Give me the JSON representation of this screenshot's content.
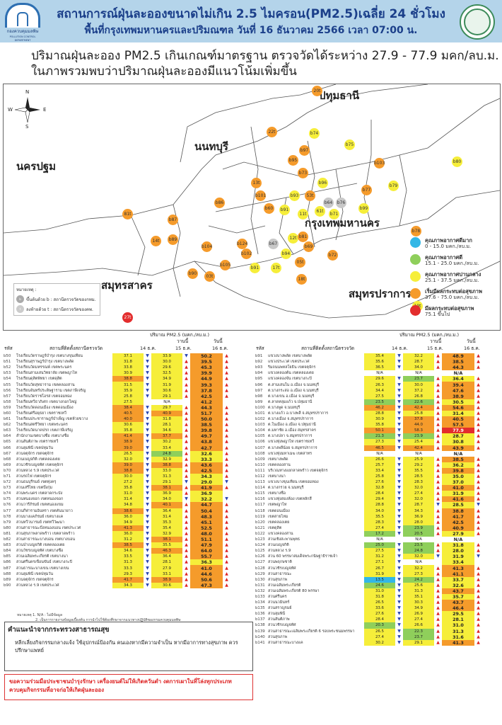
{
  "header": {
    "title": "สถานการณ์ฝุ่นละอองขนาดไม่เกิน 2.5 ไมครอน(PM2.5)เฉลี่ย 24 ชั่วโมง",
    "subtitle": "พื้นที่กรุงเทพมหานครและปริมณฑล วันที่ 16 ธันวาคม 2566 เวลา 07:00 น.",
    "logo_left_text": "กองควบคุมมลพิษ",
    "logo_left_sub": "POLLUTION CONTROL DEPARTMENT"
  },
  "summary": {
    "line1": "ปริมาณฝุ่นละออง PM2.5 เกินเกณฑ์มาตรฐาน ตรวจวัดได้ระหว่าง 27.9 - 77.9 มคก/ลบ.ม.",
    "line2": "ในภาพรวมพบว่าปริมาณฝุ่นละอองมีแนวโน้มเพิ่มขึ้น"
  },
  "map": {
    "compass": {
      "n": "N",
      "s": "S",
      "e": "E",
      "w": "W"
    },
    "regions": {
      "pathum": "ปทุมธานี",
      "nonthaburi": "นนทบุรี",
      "nakhonpathom": "นครปฐม",
      "bangkok": "กรุงเทพมหานคร",
      "samutsakhon": "สมุทรสาคร",
      "samutprakan": "สมุทรปราการ"
    },
    "stations": [
      {
        "label": "20t",
        "color": "orange"
      },
      {
        "label": "b74",
        "color": "yellow"
      },
      {
        "label": "b75",
        "color": "yellow"
      },
      {
        "label": "22t",
        "color": "orange"
      },
      {
        "label": "b97",
        "color": "orange"
      },
      {
        "label": "b95",
        "color": "orange"
      },
      {
        "label": "b103",
        "color": "orange"
      },
      {
        "label": "b80",
        "color": "yellow"
      },
      {
        "label": "b73",
        "color": "orange"
      },
      {
        "label": "b96",
        "color": "yellow"
      },
      {
        "label": "b77",
        "color": "orange"
      },
      {
        "label": "b79",
        "color": "yellow"
      },
      {
        "label": "13t",
        "color": "orange"
      },
      {
        "label": "b86",
        "color": "orange"
      },
      {
        "label": "b101",
        "color": "orange"
      },
      {
        "label": "b93",
        "color": "yellow"
      },
      {
        "label": "53t",
        "color": "orange"
      },
      {
        "label": "b64",
        "color": "grey"
      },
      {
        "label": "b76",
        "color": "grey"
      },
      {
        "label": "b99",
        "color": "yellow"
      },
      {
        "label": "81t",
        "color": "orange"
      },
      {
        "label": "b87",
        "color": "orange"
      },
      {
        "label": "b60",
        "color": "orange"
      },
      {
        "label": "b91",
        "color": "yellow"
      },
      {
        "label": "11t",
        "color": "yellow"
      },
      {
        "label": "61t",
        "color": "yellow"
      },
      {
        "label": "b71",
        "color": "yellow"
      },
      {
        "label": "14t",
        "color": "orange"
      },
      {
        "label": "b89",
        "color": "orange"
      },
      {
        "label": "b104",
        "color": "orange"
      },
      {
        "label": "b124",
        "color": "orange"
      },
      {
        "label": "b67",
        "color": "grey"
      },
      {
        "label": "12t",
        "color": "yellow"
      },
      {
        "label": "b81",
        "color": "orange"
      },
      {
        "label": "b78",
        "color": "orange"
      },
      {
        "label": "b102",
        "color": "orange"
      },
      {
        "label": "b94",
        "color": "yellow"
      },
      {
        "label": "b69",
        "color": "orange"
      },
      {
        "label": "b72",
        "color": "orange"
      },
      {
        "label": "b91",
        "color": "yellow"
      },
      {
        "label": "17t",
        "color": "yellow"
      },
      {
        "label": "05t",
        "color": "orange"
      },
      {
        "label": "b90",
        "color": "orange"
      },
      {
        "label": "03t",
        "color": "orange"
      },
      {
        "label": "b105",
        "color": "orange"
      },
      {
        "label": "18t",
        "color": "orange"
      },
      {
        "label": "19t",
        "color": "yellow"
      },
      {
        "label": "27t",
        "color": "red"
      }
    ],
    "legend": [
      {
        "title": "คุณภาพอากาศดีมาก",
        "range": "0 - 15.0 มคก./ลบ.ม.",
        "color": "#33b7e6"
      },
      {
        "title": "คุณภาพอากาศดี",
        "range": "15.1 - 25.0 มคก./ลบ.ม.",
        "color": "#8fcf5b"
      },
      {
        "title": "คุณภาพอากาศปานกลาง",
        "range": "25.1 - 37.5 มคก./ลบ.ม.",
        "color": "#f6ee3a"
      },
      {
        "title": "เริ่มมีผลกระทบต่อสุขภาพ",
        "range": "37.6 - 75.0 มคก./ลบ.ม.",
        "color": "#f59b2b"
      },
      {
        "title": "มีผลกระทบต่อสุขภาพ",
        "range": "75.1 ขึ้นไป",
        "color": "#e32d2d"
      }
    ],
    "note": {
      "title": "หมายเหตุ :",
      "row1": "ขึ้นต้นด้วย b : สถานีตรวจวัดของกทม.",
      "row2": "ลงท้ายด้วย t : สถานีตรวจวัดของคพ."
    }
  },
  "table_header": {
    "unit": "ปริมาณ PM2.5 (มคก./ลบ.ม.)",
    "code": "รหัส",
    "station_left": "สถานที่ติดตั้งสถานีตรวจวัด",
    "station_right": "สถานที่ติดตั้งสถานีตรวจวัด",
    "col1": "14 ธ.ค.",
    "col2_top": "วานนี้",
    "col2": "15 ธ.ค.",
    "col3_top": "วันนี้",
    "col3": "16 ธ.ค."
  },
  "table_left": [
    [
      "b50",
      "โรงเรียนวัดราษฎร์บำรุง เขตบางขุนเทียน",
      "37.1",
      "dn",
      "33.9",
      "dn",
      "50.2",
      "up"
    ],
    [
      "b51",
      "โรงเรียนสุราษฎร์บำรุง เขตบางพลัด",
      "31.8",
      "dn",
      "30.0",
      "up",
      "39.5",
      "up"
    ],
    [
      "b52",
      "โรงเรียนวัดมหรรณพ์ เขตพระนคร",
      "33.8",
      "dn",
      "29.6",
      "up",
      "45.3",
      "up"
    ],
    [
      "b53",
      "โรงเรียนสามเสนวิทยาลัย เขตพญาไท",
      "30.9",
      "dn",
      "32.5",
      "up",
      "39.9",
      "up"
    ],
    [
      "b54",
      "โรงเรียนดุสิตพิทยา เขตดุสิต",
      "38.8",
      "dn",
      "34.9",
      "up",
      "44.9",
      "up"
    ],
    [
      "b55",
      "โรงเรียนวัดสุทธาราม เขตคลองสาน",
      "31.5",
      "dn",
      "31.9",
      "up",
      "39.3",
      "up"
    ],
    [
      "b56",
      "โรงเรียนจันทร์ประดิษฐาราม เขตภาษีเจริญ",
      "35.9",
      "dn",
      "30.6",
      "up",
      "37.8",
      "up"
    ],
    [
      "b57",
      "โรงเรียนวัดราชโอรส เขตจอมทอง",
      "25.8",
      "dn",
      "29.1",
      "up",
      "42.5",
      "up"
    ],
    [
      "b58",
      "โรงเรียนทวีธาภิเศก เขตบางกอกใหญ่",
      "27.5",
      "",
      "N/A",
      "",
      "41.2",
      ""
    ],
    [
      "b59",
      "โรงเรียนวัดดอนเมือง เขตดอนเมือง",
      "38.4",
      "dn",
      "29.7",
      "up",
      "44.3",
      "up"
    ],
    [
      "b60",
      "โรงเรียนศรีอยุธยา เขตราชเทวี",
      "40.5",
      "dn",
      "40.9",
      "up",
      "51.7",
      "up"
    ],
    [
      "b61",
      "โรงเรียนประชาราษฎร์บำเพ็ญ เขตห้วยขวาง",
      "40.0",
      "dn",
      "31.8",
      "up",
      "50.0",
      "up"
    ],
    [
      "b62",
      "โรงเรียนสตรีวิทยา เขตพระนคร",
      "30.6",
      "dn",
      "28.1",
      "up",
      "38.5",
      "up"
    ],
    [
      "b63",
      "โรงเรียนวัดนาคปรก เขตภาษีเจริญ",
      "35.8",
      "dn",
      "34.6",
      "up",
      "39.8",
      "up"
    ],
    [
      "b64",
      "สำนักงานเขตบางซื่อ เขตบางซื่อ",
      "41.4",
      "dn",
      "37.7",
      "up",
      "49.7",
      "up"
    ],
    [
      "b65",
      "สวนสันติภาพ เขตราชเทวี",
      "38.9",
      "dn",
      "30.2",
      "up",
      "43.8",
      "up"
    ],
    [
      "b66",
      "สวนลุมพินี เขตปทุมวัน",
      "39.0",
      "dn",
      "33.4",
      "up",
      "42.7",
      "up"
    ],
    [
      "b67",
      "สวนจตุจักร เขตจตุจักร",
      "26.5",
      "dn",
      "24.8",
      "up",
      "32.6",
      "up"
    ],
    [
      "b68",
      "สวนเบญจกิติ เขตคลองเตย",
      "32.0",
      "dn",
      "32.9",
      "up",
      "33.3",
      "up"
    ],
    [
      "b69",
      "สวนวชิรเบญจทัศ เขตจตุจักร",
      "39.0",
      "dn",
      "38.8",
      "up",
      "43.6",
      "up"
    ],
    [
      "b70",
      "สวนหลวง ร.9 เขตประเวศ",
      "38.8",
      "dn",
      "33.0",
      "up",
      "42.5",
      "up"
    ],
    [
      "b71",
      "สวนรถไฟ เขตจตุจักร",
      "30.0",
      "dn",
      "31.3",
      "up",
      "34.3",
      "up"
    ],
    [
      "b72",
      "สวนธนบุรีรมย์ เขตทุ่งครุ",
      "27.2",
      "dn",
      "29.1",
      "dn",
      "29.0",
      "dn"
    ],
    [
      "b73",
      "สวนเสรีไทย เขตบึงกุ่ม",
      "35.8",
      "dn",
      "38.1",
      "up",
      "41.9",
      "up"
    ],
    [
      "b74",
      "สวนพระนคร เขตลาดกระบัง",
      "31.0",
      "dn",
      "36.9",
      "up",
      "36.9",
      ""
    ],
    [
      "b75",
      "สวนหนองจอก เขตหนองจอก",
      "31.4",
      "dn",
      "34.0",
      "dn",
      "32.2",
      "dn"
    ],
    [
      "b76",
      "สวนวารีภิรมย์ เขตหนองแขม",
      "34.8",
      "dn",
      "40.1",
      "up",
      "44.7",
      "up"
    ],
    [
      "b77",
      "สวนกีฬารามอินทรา เขตคันนายาว",
      "38.6",
      "dn",
      "36.4",
      "up",
      "50.4",
      "up"
    ],
    [
      "b78",
      "สวนบางแคภิรมย์ เขตบางแค",
      "36.0",
      "dn",
      "31.4",
      "up",
      "48.3",
      "up"
    ],
    [
      "b79",
      "สวนทวีวนารมย์ เขตทวีวัฒนา",
      "34.9",
      "dn",
      "35.3",
      "up",
      "45.1",
      "up"
    ],
    [
      "b80",
      "สวนสาธารณะบึงหนองบอน เขตประเวศ",
      "41.3",
      "dn",
      "35.4",
      "up",
      "52.5",
      "up"
    ],
    [
      "b81",
      "สวนสุขภาพลาดพร้าว เขตลาดพร้าว",
      "36.0",
      "dn",
      "32.9",
      "up",
      "48.0",
      "up"
    ],
    [
      "b82",
      "สวนสาธารณะบางบอน เขตบางบอน",
      "31.2",
      "dn",
      "38.1",
      "up",
      "51.1",
      "up"
    ],
    [
      "b83",
      "สวนป่าเบญจกิติ เขตคลองเตย",
      "38.5",
      "dn",
      "35.5",
      "up",
      "47.9",
      "up"
    ],
    [
      "b84",
      "สวนวัชรเบญจทัศ เขตบางซื่อ",
      "34.6",
      "dn",
      "46.3",
      "up",
      "64.0",
      "up"
    ],
    [
      "b85",
      "สวนเฉลิมพระเกียรติ เขตบางนา",
      "33.5",
      "dn",
      "36.4",
      "up",
      "55.7",
      "up"
    ],
    [
      "b86",
      "สวนศรีนครเขื่อนขันธ์ เขตบางกะปิ",
      "31.3",
      "dn",
      "28.1",
      "up",
      "36.3",
      "up"
    ],
    [
      "b87",
      "สวนธารณะบางเขน เขตบางเขน",
      "33.3",
      "dn",
      "27.9",
      "up",
      "41.0",
      "up"
    ],
    [
      "b88",
      "สวนลุมพินี เขตปทุมวัน",
      "29.3",
      "dn",
      "33.1",
      "up",
      "44.6",
      "up"
    ],
    [
      "b89",
      "สวนจตุจักร เขตจตุจักร",
      "41.7",
      "dn",
      "38.9",
      "up",
      "50.6",
      "up"
    ],
    [
      "b90",
      "สวนหลวง ร.9 เขตประเวศ",
      "34.3",
      "dn",
      "30.6",
      "up",
      "47.3",
      "up"
    ]
  ],
  "table_right": [
    [
      "b91",
      "แขวงบางพลัด เขตบางพลัด",
      "35.4",
      "dn",
      "32.2",
      "up",
      "48.9",
      "up"
    ],
    [
      "b92",
      "แขวงประเวศ เขตประเวศ",
      "35.6",
      "dn",
      "28.7",
      "up",
      "38.5",
      "up"
    ],
    [
      "b93",
      "ริมถนนพหลโยธิน เขตจตุจักร",
      "36.5",
      "dn",
      "34.0",
      "up",
      "44.3",
      "up"
    ],
    [
      "b94",
      "แขวงคลองต้น เขตคลองเตย",
      "N/A",
      "",
      "N/A",
      "",
      "N/A",
      ""
    ],
    [
      "b95",
      "แขวงคลองจั่น เขตบางกะปิ",
      "29.6",
      "dn",
      "23.7",
      "up",
      "36.4",
      "up"
    ],
    [
      "b96",
      "ต.สามเสนใน อ.เมือง จ.นนทบุรี",
      "26.3",
      "dn",
      "30.0",
      "up",
      "39.4",
      "up"
    ],
    [
      "b97",
      "ต.บางกระสอ อ.เมือง จ.นนทบุรี",
      "34.4",
      "dn",
      "37.2",
      "up",
      "47.6",
      "up"
    ],
    [
      "b98",
      "ต.บางเขน อ.เมือง จ.นนทบุรี",
      "27.5",
      "dn",
      "26.8",
      "up",
      "38.9",
      "up"
    ],
    [
      "b99",
      "ต.ลาดหลุมแก้ว จ.ปทุมธานี",
      "23.5",
      "dn",
      "22.6",
      "up",
      "30.5",
      "up"
    ],
    [
      "b100",
      "ต.บางพูด จ.นนทบุรี",
      "46.2",
      "dn",
      "42.4",
      "up",
      "54.6",
      "up"
    ],
    [
      "b101",
      "ต.บางแก้ว อ.บางพลี จ.สมุทรปราการ",
      "28.8",
      "dn",
      "25.8",
      "up",
      "31.4",
      "up"
    ],
    [
      "b102",
      "ต.บางเมือง จ.สมุทรปราการ",
      "30.9",
      "dn",
      "37.8",
      "up",
      "40.5",
      "up"
    ],
    [
      "b103",
      "ต.ในเมือง อ.เมือง จ.ปทุมธานี",
      "35.8",
      "dn",
      "44.0",
      "up",
      "57.5",
      "up"
    ],
    [
      "b104",
      "ต.มหาชัย อ.เมือง สมุทรสาคร",
      "50.1",
      "dn",
      "58.3",
      "up",
      "77.9",
      "up"
    ],
    [
      "b105",
      "ต.บางปลา จ.สมุทรปราการ",
      "21.3",
      "dn",
      "23.9",
      "up",
      "28.7",
      "up"
    ],
    [
      "b106",
      "แขวงทุ่งพญาไท เขตราชเทวี",
      "27.3",
      "dn",
      "25.4",
      "up",
      "30.8",
      "up"
    ],
    [
      "b107",
      "ต.บางพลีน้อย จ.สมุทรปราการ",
      "46.5",
      "dn",
      "42.4",
      "up",
      "43.9",
      "up"
    ],
    [
      "b108",
      "แขวงทุ่งมหาเมฆ เขตสาทร",
      "N/A",
      "",
      "N/A",
      "",
      "N/A",
      ""
    ],
    [
      "b109",
      "เขตบางพลัด",
      "26.6",
      "dn",
      "25.9",
      "up",
      "38.5",
      "up"
    ],
    [
      "b110",
      "เขตคลองสาน",
      "25.7",
      "dn",
      "29.2",
      "up",
      "36.2",
      "up"
    ],
    [
      "b111",
      "บริเวณทางแยกลาดพร้าว เขตจตุจักร",
      "33.4",
      "dn",
      "35.5",
      "up",
      "39.8",
      "up"
    ],
    [
      "b112",
      "เขตบางนา",
      "25.8",
      "dn",
      "28.5",
      "up",
      "35.0",
      "up"
    ],
    [
      "b113",
      "แขวงบางขุนเทียน เขตจอมทอง",
      "27.6",
      "dn",
      "28.3",
      "up",
      "37.0",
      "up"
    ],
    [
      "b114",
      "ต.บางกรวย จ.นนทบุรี",
      "32.8",
      "dn",
      "32.0",
      "up",
      "41.0",
      "up"
    ],
    [
      "b115",
      "เขตบางซื่อ",
      "28.4",
      "dn",
      "27.4",
      "up",
      "31.9",
      "up"
    ],
    [
      "b116",
      "แขวงทุ่งสองห้อง เขตหลักสี่",
      "29.4",
      "dn",
      "32.0",
      "up",
      "41.6",
      "up"
    ],
    [
      "b117",
      "เขตพญาไท",
      "28.8",
      "dn",
      "28.7",
      "dn",
      "28.5",
      "dn"
    ],
    [
      "b118",
      "เขตดอนเมือง",
      "34.0",
      "dn",
      "34.3",
      "up",
      "38.8",
      "up"
    ],
    [
      "b119",
      "เขตสายไหม",
      "35.5",
      "dn",
      "36.9",
      "up",
      "41.7",
      "up"
    ],
    [
      "b120",
      "เขตคลองเตย",
      "28.3",
      "dn",
      "28.0",
      "up",
      "42.5",
      "up"
    ],
    [
      "b121",
      "เขตดุสิต",
      "27.4",
      "dn",
      "23.9",
      "up",
      "40.9",
      "up"
    ],
    [
      "b122",
      "แขวงคลองสาน",
      "17.2",
      "dn",
      "20.5",
      "up",
      "27.9",
      "up"
    ],
    [
      "b123",
      "สวนเชิงสะพานพุทธ",
      "N/A",
      "",
      "N/A",
      "",
      "N/A",
      ""
    ],
    [
      "b124",
      "สวนเบญจกิติ",
      "25.0",
      "dn",
      "23.5",
      "up",
      "31.8",
      "up"
    ],
    [
      "b125",
      "สวนหลวง ร.9",
      "27.5",
      "dn",
      "24.8",
      "up",
      "28.0",
      "up"
    ],
    [
      "b126",
      "สวน 60 พรรษาสมเด็จพระกนิษฐาธิราชเจ้า",
      "31.2",
      "dn",
      "32.0",
      "dn",
      "31.9",
      "dn"
    ],
    [
      "b127",
      "สวนพฤกษชาติ",
      "27.1",
      "dn",
      "N/A",
      "",
      "33.4",
      ""
    ],
    [
      "b128",
      "สวนวชิรเบญจทัศ",
      "26.7",
      "dn",
      "32.2",
      "up",
      "41.3",
      "up"
    ],
    [
      "b129",
      "สวนสาธารณะ",
      "31.9",
      "dn",
      "27.3",
      "up",
      "41.1",
      "up"
    ],
    [
      "b130",
      "สวนสุขภาพ",
      "13.5",
      "dn",
      "24.2",
      "up",
      "33.7",
      "up"
    ],
    [
      "b131",
      "สวนเฉลิมพระเกียรติ",
      "24.6",
      "dn",
      "25.6",
      "up",
      "32.6",
      "up"
    ],
    [
      "b132",
      "สวนเฉลิมพระเกียรติ 80 พรรษา",
      "31.0",
      "dn",
      "31.3",
      "up",
      "43.7",
      "up"
    ],
    [
      "b133",
      "สวนศรีนคร",
      "31.8",
      "dn",
      "35.1",
      "up",
      "35.7",
      "up"
    ],
    [
      "b134",
      "สวนนวมินทร์",
      "26.5",
      "dn",
      "30.3",
      "up",
      "43.7",
      "up"
    ],
    [
      "b135",
      "สวนสราญรมย์",
      "33.6",
      "dn",
      "34.9",
      "up",
      "46.4",
      "up"
    ],
    [
      "b136",
      "สวนลุมพินี",
      "27.6",
      "dn",
      "26.9",
      "up",
      "29.5",
      "up"
    ],
    [
      "b137",
      "สวนสันติภาพ",
      "28.4",
      "dn",
      "27.4",
      "up",
      "28.1",
      "up"
    ],
    [
      "b138",
      "สวนวชิรเบญจทัศ",
      "20.3",
      "dn",
      "26.6",
      "up",
      "31.0",
      "up"
    ],
    [
      "b139",
      "สวนสาธารณะเฉลิมพระเกียรติ 6 รอบพระชนมพรรษา",
      "26.5",
      "dn",
      "22.3",
      "up",
      "31.3",
      "up"
    ],
    [
      "b140",
      "สวนสุขภาพ",
      "27.4",
      "dn",
      "23.7",
      "up",
      "31.6",
      "up"
    ],
    [
      "b141",
      "สวนสาธารณะบางแค",
      "30.2",
      "dn",
      "29.1",
      "up",
      "41.3",
      "up"
    ]
  ],
  "footnote": {
    "l1": "หมายเหตุ 1. N/A : ไม่มีข้อมูล",
    "l2": "2. เป็นการรายงานข้อมูลเบื้องต้น การนำไปใช้ต้องศึกษาจากแนวทางปฏิบัติของกรมควบคุมมลพิษ"
  },
  "advice": {
    "title": "คำแนะนำจากกระทรวงสาธารณสุข",
    "body": "หลีกเลี่ยงกิจกรรมกลางแจ้ง ใช้อุปกรณ์ป้องกัน คนเองหากมีความจำเป็น หากมีอาการทางสุขภาพ ควรปรึกษาแพทย์"
  },
  "request": {
    "body": "ขอความร่วมมือประชาชนบำรุงรักษา เครื่องยนต์ไม่ให้เกิดควันดำ งดการเผาในที่โล่งทุกประเภท ควบคุมกิจกรรมที่อาจก่อให้เกิดฝุ่นละออง"
  }
}
